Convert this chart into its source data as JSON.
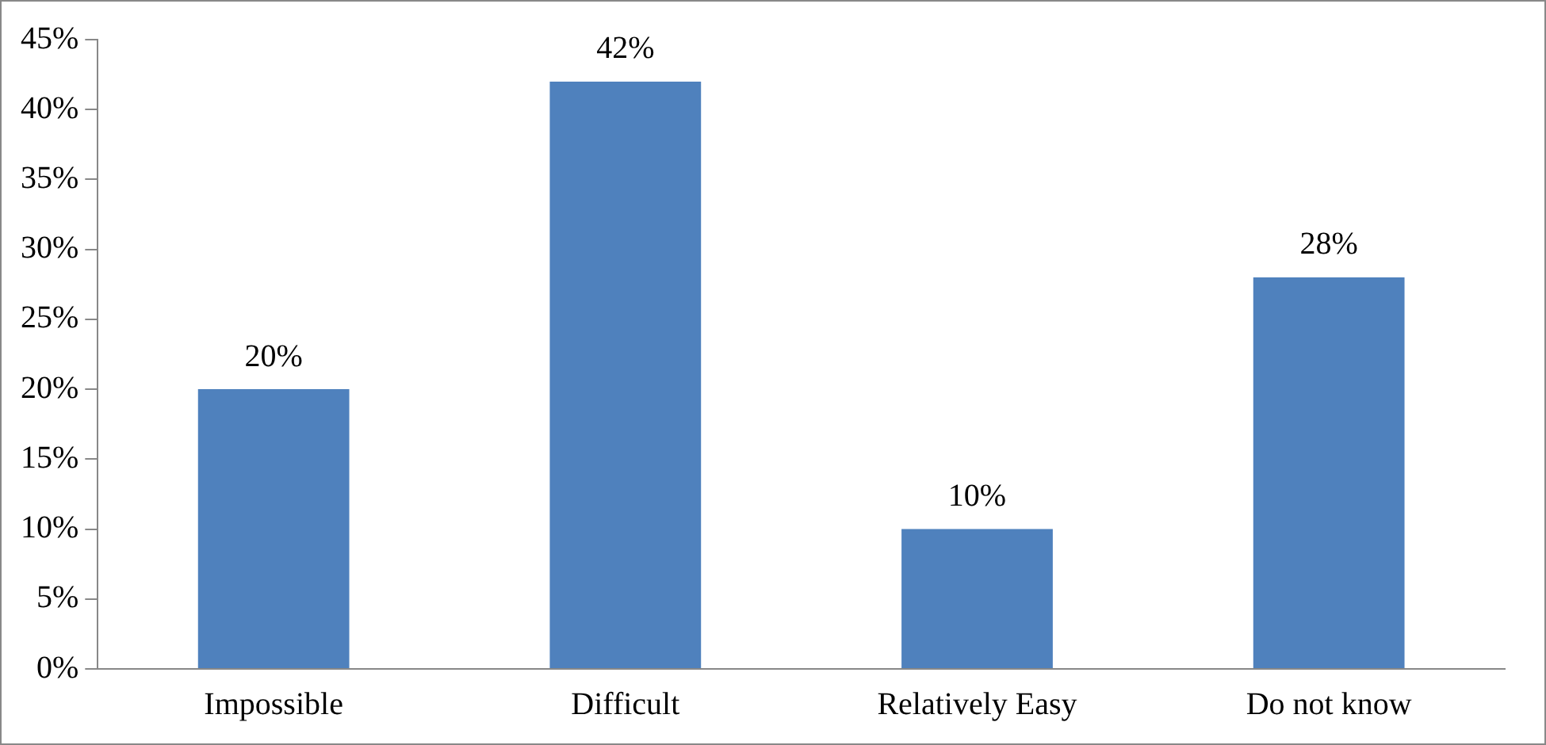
{
  "chart_data": {
    "type": "bar",
    "categories": [
      "Impossible",
      "Difficult",
      "Relatively Easy",
      "Do not know"
    ],
    "values": [
      20,
      42,
      10,
      28
    ],
    "color": "#4f81bd",
    "value_labels": [
      "20%",
      "42%",
      "10%",
      "28%"
    ],
    "ylim": [
      0,
      45
    ],
    "yticks": [
      {
        "value": 0,
        "label": "0%"
      },
      {
        "value": 5,
        "label": "5%"
      },
      {
        "value": 10,
        "label": "10%"
      },
      {
        "value": 15,
        "label": "15%"
      },
      {
        "value": 20,
        "label": "20%"
      },
      {
        "value": 25,
        "label": "25%"
      },
      {
        "value": 30,
        "label": "30%"
      },
      {
        "value": 35,
        "label": "35%"
      },
      {
        "value": 40,
        "label": "40%"
      },
      {
        "value": 45,
        "label": "45%"
      }
    ],
    "grid": false,
    "legend": false
  }
}
